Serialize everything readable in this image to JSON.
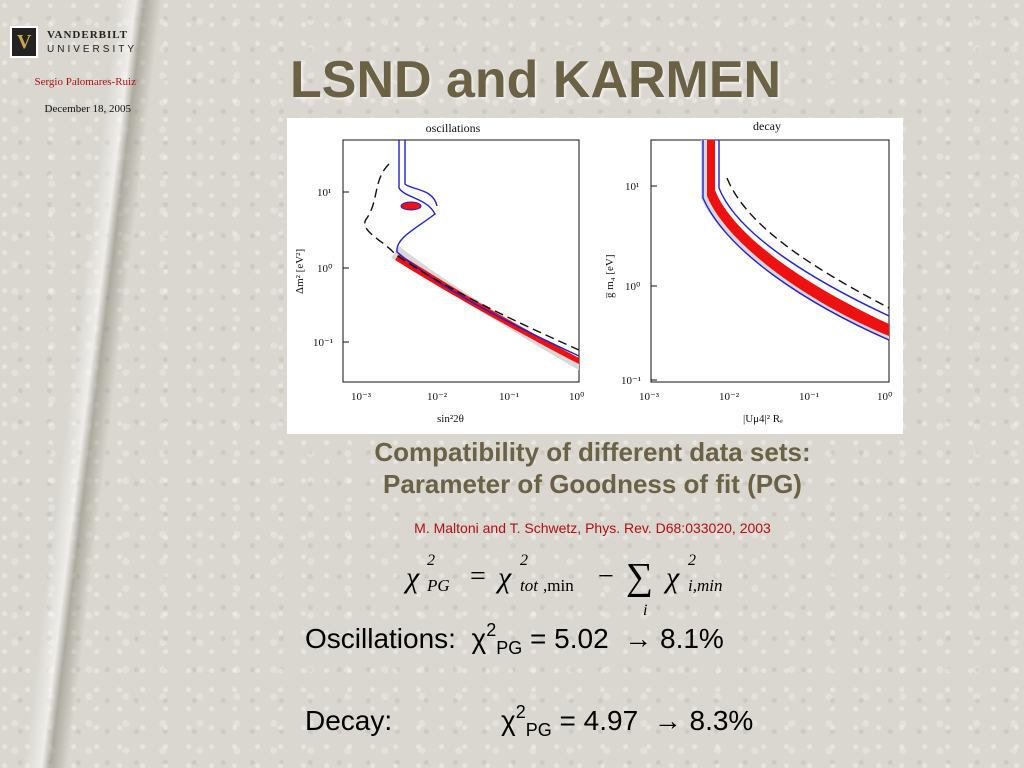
{
  "header": {
    "logo_line1": "VANDERBILT",
    "logo_line2": "UNIVERSITY",
    "author": "Sergio Palomares-Ruiz",
    "date": "December 18, 2005"
  },
  "title": "LSND and KARMEN",
  "figure": {
    "left_title": "oscillations",
    "right_title": "decay",
    "left_xlabel": "sin²2θ",
    "left_ylabel": "Δm² [eV²]",
    "right_xlabel": "|Uμ4|² Rₑ",
    "right_ylabel": "g̅ m₄ [eV]",
    "left_xticks": [
      "10⁻³",
      "10⁻²",
      "10⁻¹",
      "10⁰"
    ],
    "left_yticks": [
      "10¹",
      "10⁰",
      "10⁻¹"
    ],
    "right_xticks": [
      "10⁻³",
      "10⁻²",
      "10⁻¹",
      "10⁰"
    ],
    "right_yticks": [
      "10¹",
      "10⁰",
      "10⁻¹"
    ],
    "colors": {
      "fill": "#ee1111",
      "band": "#d8d8d8",
      "contour": "#2222cc",
      "dashed": "#111111"
    }
  },
  "subtitle_line1": "Compatibility of different data sets:",
  "subtitle_line2": "Parameter of Goodness of fit (PG)",
  "reference": "M. Maltoni and T. Schwetz, Phys. Rev. D68:033020, 2003",
  "formula": {
    "chi": "χ",
    "sq": "2",
    "pg": "PG",
    "eq": "=",
    "tot": "tot",
    "min": ",min",
    "minus": "−",
    "sum": "∑",
    "i": "i",
    "imin": "i,min"
  },
  "results": [
    {
      "label": "Oscillations:",
      "chi": "χ",
      "sup": "2",
      "sub": "PG",
      "value": "= 5.02",
      "arrow": "→ 8.1%"
    },
    {
      "label": "Decay:",
      "chi": "χ",
      "sup": "2",
      "sub": "PG",
      "value": "= 4.97",
      "arrow": "→ 8.3%"
    }
  ]
}
